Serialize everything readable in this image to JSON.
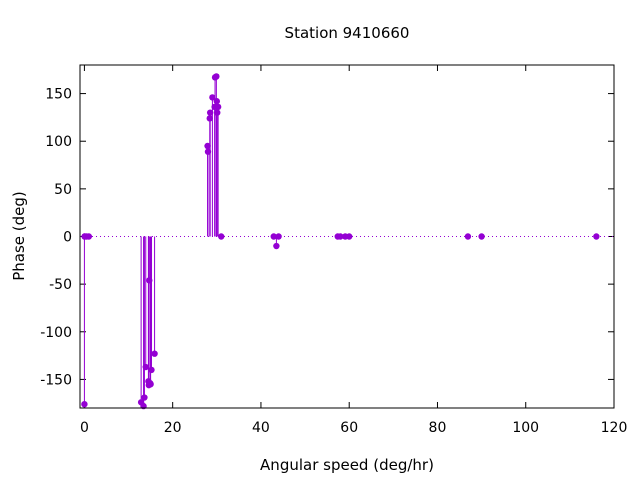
{
  "chart_data": {
    "type": "scatter",
    "style": "impulses-with-points",
    "title": "Station 9410660",
    "xlabel": "Angular speed (deg/hr)",
    "ylabel": "Phase (deg)",
    "xlim": [
      -1,
      120
    ],
    "ylim": [
      -180,
      180
    ],
    "xticks": [
      0,
      20,
      40,
      60,
      80,
      100,
      120
    ],
    "yticks": [
      -150,
      -100,
      -50,
      0,
      50,
      100,
      150
    ],
    "grid": false,
    "zero_line": "dotted",
    "legend": "none",
    "color": "#9400d3",
    "points": [
      {
        "x": 0.0,
        "y": -176
      },
      {
        "x": 0.04,
        "y": 0
      },
      {
        "x": 0.08,
        "y": 0
      },
      {
        "x": 0.5,
        "y": 0
      },
      {
        "x": 1.0,
        "y": 0
      },
      {
        "x": 12.85,
        "y": -174
      },
      {
        "x": 13.4,
        "y": -178
      },
      {
        "x": 13.6,
        "y": -169
      },
      {
        "x": 13.9,
        "y": -137
      },
      {
        "x": 14.5,
        "y": -152
      },
      {
        "x": 14.6,
        "y": -156
      },
      {
        "x": 14.7,
        "y": -46
      },
      {
        "x": 14.9,
        "y": -154
      },
      {
        "x": 15.0,
        "y": -155
      },
      {
        "x": 15.2,
        "y": -140
      },
      {
        "x": 15.9,
        "y": -123
      },
      {
        "x": 27.9,
        "y": 95
      },
      {
        "x": 28.0,
        "y": 89
      },
      {
        "x": 28.4,
        "y": 124
      },
      {
        "x": 28.5,
        "y": 130
      },
      {
        "x": 29.0,
        "y": 146
      },
      {
        "x": 29.5,
        "y": 136
      },
      {
        "x": 29.6,
        "y": 167
      },
      {
        "x": 29.9,
        "y": 168
      },
      {
        "x": 30.0,
        "y": 142
      },
      {
        "x": 30.1,
        "y": 130
      },
      {
        "x": 30.3,
        "y": 136
      },
      {
        "x": 31.0,
        "y": 0
      },
      {
        "x": 42.9,
        "y": 0
      },
      {
        "x": 43.5,
        "y": -10
      },
      {
        "x": 44.0,
        "y": 0
      },
      {
        "x": 57.4,
        "y": 0
      },
      {
        "x": 58.0,
        "y": 0
      },
      {
        "x": 59.1,
        "y": 0
      },
      {
        "x": 60.0,
        "y": 0
      },
      {
        "x": 86.9,
        "y": 0
      },
      {
        "x": 90.0,
        "y": 0
      },
      {
        "x": 116.0,
        "y": 0
      }
    ]
  }
}
